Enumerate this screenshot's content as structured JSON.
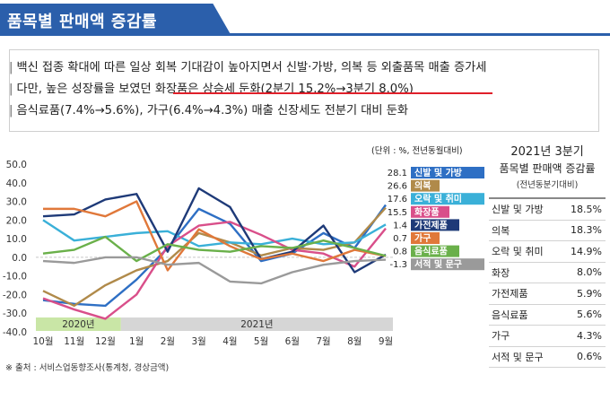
{
  "header": {
    "title": "품목별 판매액 증감률"
  },
  "summary": {
    "line1": "백신 접종 확대에 따른 일상 회복 기대감이 높아지면서 신발·가방, 의복 등 외출품목 매출 증가세",
    "line2": "다만, 높은 성장률을 보였던 화장품은 상승세 둔화(2분기 15.2%→3분기 8.0%)",
    "line3": "음식료품(7.4%→5.6%), 가구(6.4%→4.3%) 매출 신장세도 전분기 대비 둔화",
    "bar": "|"
  },
  "chart_data": {
    "type": "line",
    "unit_note": "(단위 : %, 전년동월대비)",
    "x": [
      "10월",
      "11월",
      "12월",
      "1월",
      "2월",
      "3월",
      "4월",
      "5월",
      "6월",
      "7월",
      "8월",
      "9월"
    ],
    "ylim": [
      -40,
      50
    ],
    "yticks": [
      "50.0",
      "40.0",
      "30.0",
      "20.0",
      "10.0",
      "0.0",
      "-10.0",
      "-20.0",
      "-30.0",
      "-40.0"
    ],
    "year_labels": [
      "2020년",
      "2021년"
    ],
    "grid": false,
    "legend_position": "right",
    "series": [
      {
        "name": "신발 및 가방",
        "end_label": "28.1",
        "color": "#2e6fc4",
        "values": [
          -23,
          -25,
          -26,
          -12,
          5,
          26,
          18,
          -2,
          2,
          13,
          5,
          28.1
        ]
      },
      {
        "name": "의복",
        "end_label": "26.6",
        "color": "#b08a4a",
        "values": [
          -18,
          -26,
          -15,
          -7,
          -2,
          13,
          8,
          1,
          5,
          4,
          8,
          26.6
        ]
      },
      {
        "name": "오락 및 취미",
        "end_label": "17.6",
        "color": "#3ab0d8",
        "values": [
          20,
          9,
          11,
          13,
          14,
          6,
          8,
          7,
          10,
          7,
          8,
          17.6
        ]
      },
      {
        "name": "화장품",
        "end_label": "15.5",
        "color": "#d94f8a",
        "values": [
          -22,
          -28,
          -33,
          -20,
          6,
          17,
          19,
          12,
          4,
          2,
          -5,
          15.5
        ]
      },
      {
        "name": "가전제품",
        "end_label": "1.4",
        "color": "#1e3a78",
        "values": [
          22,
          23,
          31,
          34,
          3,
          37,
          27,
          -1,
          3,
          17,
          -8,
          1.4
        ]
      },
      {
        "name": "가구",
        "end_label": "0.7",
        "color": "#e0783a",
        "values": [
          26,
          26,
          22,
          30,
          -7,
          15,
          6,
          -1,
          2,
          -2,
          4,
          0.7
        ]
      },
      {
        "name": "음식료품",
        "end_label": "0.8",
        "color": "#6ab04a",
        "values": [
          2,
          4,
          11,
          -2,
          7,
          4,
          3,
          6,
          5,
          9,
          5,
          0.8
        ]
      },
      {
        "name": "서적 및 문구",
        "end_label": "-1.3",
        "color": "#9a9a9a",
        "values": [
          -2,
          -3,
          0,
          0,
          -4,
          -3,
          -13,
          -14,
          -8,
          -4,
          -2,
          -1.3
        ]
      }
    ]
  },
  "table": {
    "title1": "2021년 3분기",
    "title2": "품목별 판매액 증감률",
    "sub": "(전년동분기대비)",
    "rows": [
      {
        "label": "신발 및 가방",
        "value": "18.5%"
      },
      {
        "label": "의복",
        "value": "18.3%"
      },
      {
        "label": "오락 및 취미",
        "value": "14.9%"
      },
      {
        "label": "화장",
        "value": "8.0%"
      },
      {
        "label": "가전제품",
        "value": "5.9%"
      },
      {
        "label": "음식료품",
        "value": "5.6%"
      },
      {
        "label": "가구",
        "value": "4.3%"
      },
      {
        "label": "서적 및 문구",
        "value": "0.6%"
      }
    ]
  },
  "source": "※ 출처 : 서비스업동향조사(통계청, 경상금액)"
}
